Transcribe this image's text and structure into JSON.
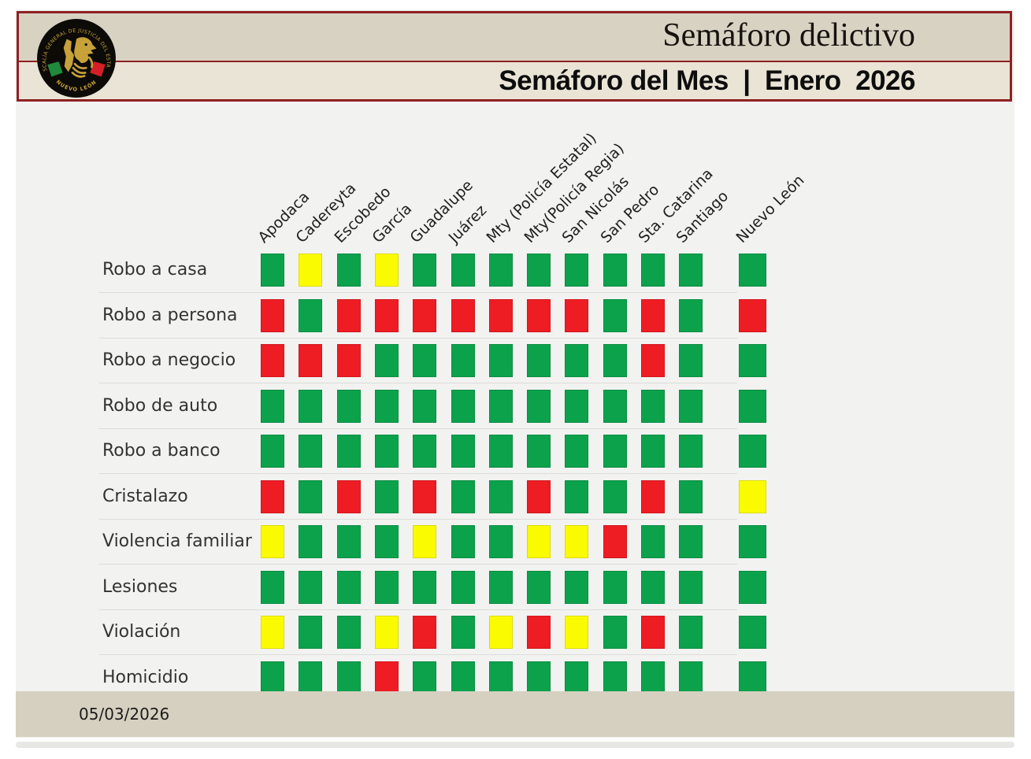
{
  "header": {
    "title": "Semáforo delictivo",
    "subtitle": "Semáforo del Mes  |  Enero  2026",
    "colors": {
      "banner_bg": "#d8d2c3",
      "strip_bg": "#eae4d6",
      "border": "#8e2121"
    },
    "logo": {
      "ring_text": "FISCALÍA GENERAL DE JUSTICIA DEL ESTADO",
      "bottom_text": "NUEVO LEÓN",
      "gold": "#c7a23a",
      "flag_green": "#1f8a3b",
      "flag_red": "#d51f26"
    }
  },
  "chart_data": {
    "type": "heatmap",
    "title": "Semáforo del Mes | Enero 2026",
    "period": "Enero 2026",
    "columns": [
      "Apodaca",
      "Cadereyta",
      "Escobedo",
      "García",
      "Guadalupe",
      "Juárez",
      "Mty (Policía Estatal)",
      "Mty(Policía Regia)",
      "San Nicolás",
      "San Pedro",
      "Sta. Catarina",
      "Santiago"
    ],
    "state_column": "Nuevo León",
    "cell_colors": {
      "G": "#0ca24c",
      "Y": "#fbfb00",
      "R": "#ee1c23"
    },
    "rows": [
      {
        "label": "Robo a casa",
        "cells": [
          "G",
          "Y",
          "G",
          "Y",
          "G",
          "G",
          "G",
          "G",
          "G",
          "G",
          "G",
          "G"
        ],
        "state": "G"
      },
      {
        "label": "Robo a persona",
        "cells": [
          "R",
          "G",
          "R",
          "R",
          "R",
          "R",
          "R",
          "R",
          "R",
          "G",
          "R",
          "G"
        ],
        "state": "R"
      },
      {
        "label": "Robo a negocio",
        "cells": [
          "R",
          "R",
          "R",
          "G",
          "G",
          "G",
          "G",
          "G",
          "G",
          "G",
          "R",
          "G"
        ],
        "state": "G"
      },
      {
        "label": "Robo de auto",
        "cells": [
          "G",
          "G",
          "G",
          "G",
          "G",
          "G",
          "G",
          "G",
          "G",
          "G",
          "G",
          "G"
        ],
        "state": "G"
      },
      {
        "label": "Robo a banco",
        "cells": [
          "G",
          "G",
          "G",
          "G",
          "G",
          "G",
          "G",
          "G",
          "G",
          "G",
          "G",
          "G"
        ],
        "state": "G"
      },
      {
        "label": "Cristalazo",
        "cells": [
          "R",
          "G",
          "R",
          "G",
          "R",
          "G",
          "G",
          "R",
          "G",
          "G",
          "R",
          "G"
        ],
        "state": "Y"
      },
      {
        "label": "Violencia familiar",
        "cells": [
          "Y",
          "G",
          "G",
          "G",
          "Y",
          "G",
          "G",
          "Y",
          "Y",
          "R",
          "G",
          "G"
        ],
        "state": "G"
      },
      {
        "label": "Lesiones",
        "cells": [
          "G",
          "G",
          "G",
          "G",
          "G",
          "G",
          "G",
          "G",
          "G",
          "G",
          "G",
          "G"
        ],
        "state": "G"
      },
      {
        "label": "Violación",
        "cells": [
          "Y",
          "G",
          "G",
          "Y",
          "R",
          "G",
          "Y",
          "R",
          "Y",
          "G",
          "R",
          "G"
        ],
        "state": "G"
      },
      {
        "label": "Homicidio",
        "cells": [
          "G",
          "G",
          "G",
          "R",
          "G",
          "G",
          "G",
          "G",
          "G",
          "G",
          "G",
          "G"
        ],
        "state": "G"
      }
    ]
  },
  "footer": {
    "date": "05/03/2026"
  }
}
